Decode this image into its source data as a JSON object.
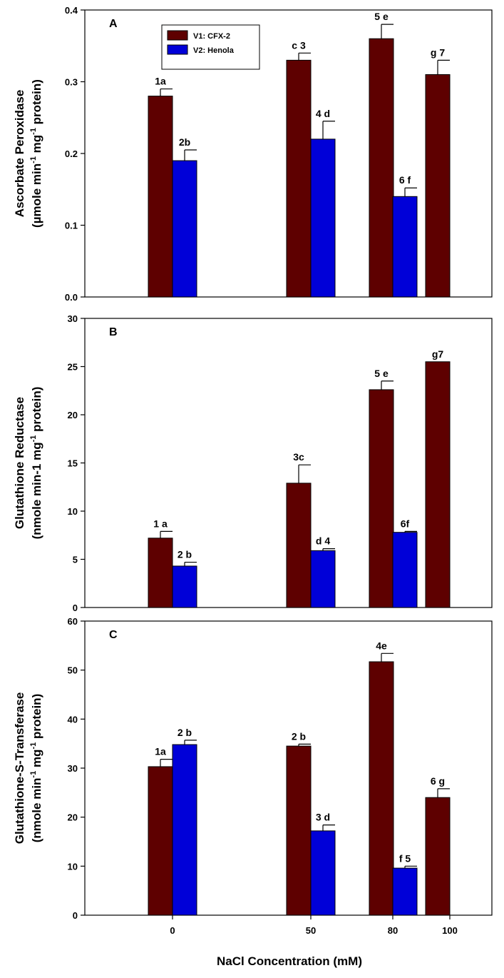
{
  "chart_data": [
    {
      "type": "bar",
      "panel_label": "A",
      "ylabel_line1": "Ascorbate Peroxidase",
      "ylabel_line2_parts": [
        "(µmole min",
        "-1",
        " mg",
        "-1",
        " protein)"
      ],
      "ylim": [
        0,
        0.4
      ],
      "yticks": [
        0.0,
        0.1,
        0.2,
        0.3,
        0.4
      ],
      "ytick_labels": [
        "0.0",
        "0.1",
        "0.2",
        "0.3",
        "0.4"
      ],
      "legend": {
        "placement": "top-left",
        "entries": [
          {
            "series": "V1",
            "label": "V1: CFX-2"
          },
          {
            "series": "V2",
            "label": "V2: Henola"
          }
        ]
      },
      "bars": [
        {
          "category": "0",
          "series": "V1",
          "value": 0.28,
          "error": 0.01,
          "label": "1a"
        },
        {
          "category": "0",
          "series": "V2",
          "value": 0.19,
          "error": 0.015,
          "label": "2b"
        },
        {
          "category": "50",
          "series": "V1",
          "value": 0.33,
          "error": 0.01,
          "label": "c 3"
        },
        {
          "category": "50",
          "series": "V2",
          "value": 0.22,
          "error": 0.025,
          "label": "4 d"
        },
        {
          "category": "80",
          "series": "V1",
          "value": 0.36,
          "error": 0.02,
          "label": "5 e"
        },
        {
          "category": "80",
          "series": "V2",
          "value": 0.14,
          "error": 0.012,
          "label": "6 f"
        },
        {
          "category": "100",
          "series": "V1",
          "value": 0.31,
          "error": 0.02,
          "label": "g 7"
        }
      ]
    },
    {
      "type": "bar",
      "panel_label": "B",
      "ylabel_line1": "Glutathione Reductase",
      "ylabel_line2_parts": [
        "(nmole min-1",
        "",
        " mg",
        "-1",
        " protein)"
      ],
      "ylim": [
        0,
        30
      ],
      "yticks": [
        0,
        5,
        10,
        15,
        20,
        25,
        30
      ],
      "ytick_labels": [
        "0",
        "5",
        "10",
        "15",
        "20",
        "25",
        "30"
      ],
      "bars": [
        {
          "category": "0",
          "series": "V1",
          "value": 7.2,
          "error": 0.7,
          "label": "1 a"
        },
        {
          "category": "0",
          "series": "V2",
          "value": 4.3,
          "error": 0.4,
          "label": "2 b"
        },
        {
          "category": "50",
          "series": "V1",
          "value": 12.9,
          "error": 1.9,
          "label": "3c"
        },
        {
          "category": "50",
          "series": "V2",
          "value": 5.9,
          "error": 0.2,
          "label": "d 4"
        },
        {
          "category": "80",
          "series": "V1",
          "value": 22.6,
          "error": 0.9,
          "label": "5 e"
        },
        {
          "category": "80",
          "series": "V2",
          "value": 7.8,
          "error": 0.1,
          "label": "6f"
        },
        {
          "category": "100",
          "series": "V1",
          "value": 25.5,
          "error": 0,
          "label": "g7"
        }
      ]
    },
    {
      "type": "bar",
      "panel_label": "C",
      "ylabel_line1": "Glutathione-S-Transferase",
      "ylabel_line2_parts": [
        "(nmole min",
        "-1",
        " mg",
        "-1",
        " protein)"
      ],
      "ylim": [
        0,
        60
      ],
      "yticks": [
        0,
        10,
        20,
        30,
        40,
        50,
        60
      ],
      "ytick_labels": [
        "0",
        "10",
        "20",
        "30",
        "40",
        "50",
        "60"
      ],
      "xtick_labels": [
        "0",
        "50",
        "80",
        "100"
      ],
      "xlabel": "NaCl Concentration (mM)",
      "bars": [
        {
          "category": "0",
          "series": "V1",
          "value": 30.3,
          "error": 1.5,
          "label": "1a"
        },
        {
          "category": "0",
          "series": "V2",
          "value": 34.8,
          "error": 0.9,
          "label": "2 b"
        },
        {
          "category": "50",
          "series": "V1",
          "value": 34.5,
          "error": 0.4,
          "label": "2 b"
        },
        {
          "category": "50",
          "series": "V2",
          "value": 17.2,
          "error": 1.2,
          "label": "3 d"
        },
        {
          "category": "80",
          "series": "V1",
          "value": 51.7,
          "error": 1.7,
          "label": "4e"
        },
        {
          "category": "80",
          "series": "V2",
          "value": 9.6,
          "error": 0.4,
          "label": "f 5"
        },
        {
          "category": "100",
          "series": "V1",
          "value": 24.0,
          "error": 1.8,
          "label": "6 g"
        }
      ]
    }
  ],
  "series_colors": {
    "V1": "#5e0000",
    "V2": "#0000d8"
  }
}
